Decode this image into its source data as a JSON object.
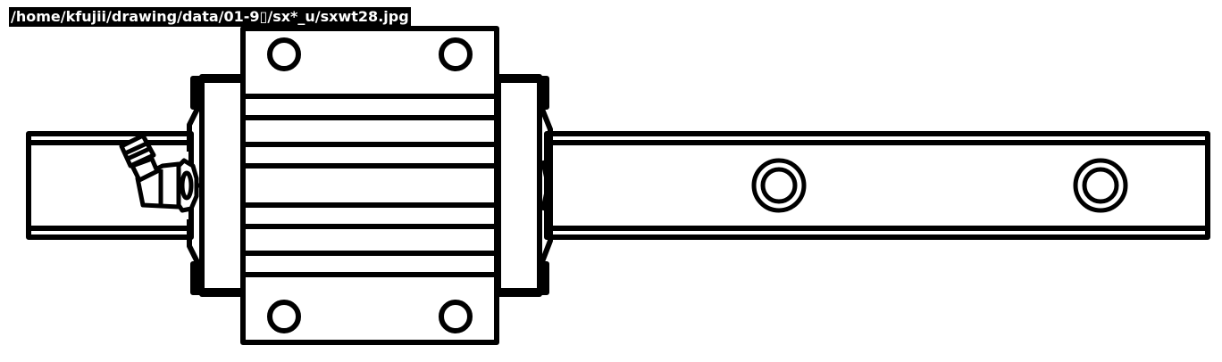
{
  "file_path_label": "/home/kfujii/drawing/data/01-9▯/sx*_u/sxwt28.jpg",
  "colors": {
    "line": "#000000",
    "background": "#ffffff",
    "label_background": "#000000",
    "label_text": "#ffffff"
  }
}
